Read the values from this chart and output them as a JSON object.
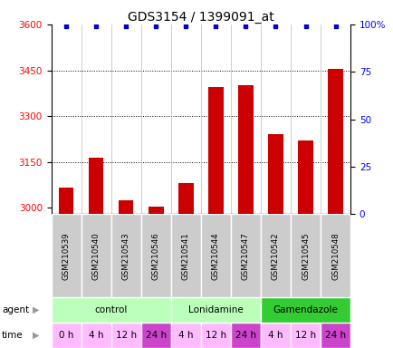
{
  "title": "GDS3154 / 1399091_at",
  "samples": [
    "GSM210539",
    "GSM210540",
    "GSM210543",
    "GSM210546",
    "GSM210541",
    "GSM210544",
    "GSM210547",
    "GSM210542",
    "GSM210545",
    "GSM210548"
  ],
  "bar_values": [
    3065,
    3165,
    3025,
    3005,
    3080,
    3395,
    3400,
    3240,
    3220,
    3455
  ],
  "percentile_values": [
    99,
    99,
    99,
    99,
    99,
    99,
    99,
    99,
    99,
    99
  ],
  "bar_color": "#cc0000",
  "percentile_color": "#0000cc",
  "ylim_left": [
    2980,
    3600
  ],
  "ylim_right": [
    0,
    100
  ],
  "yticks_left": [
    3000,
    3150,
    3300,
    3450,
    3600
  ],
  "yticks_right": [
    0,
    25,
    50,
    75,
    100
  ],
  "agent_data": [
    [
      0,
      4,
      "control",
      "#bbffbb"
    ],
    [
      4,
      7,
      "Lonidamine",
      "#bbffbb"
    ],
    [
      7,
      10,
      "Gamendazole",
      "#33cc33"
    ]
  ],
  "time_labels": [
    "0 h",
    "4 h",
    "12 h",
    "24 h",
    "4 h",
    "12 h",
    "24 h",
    "4 h",
    "12 h",
    "24 h"
  ],
  "time_colors": [
    "#ffbbff",
    "#ffbbff",
    "#ffbbff",
    "#cc44cc",
    "#ffbbff",
    "#ffbbff",
    "#cc44cc",
    "#ffbbff",
    "#ffbbff",
    "#cc44cc"
  ],
  "sample_bg_color": "#cccccc",
  "bg_color": "#ffffff",
  "bar_width": 0.5
}
